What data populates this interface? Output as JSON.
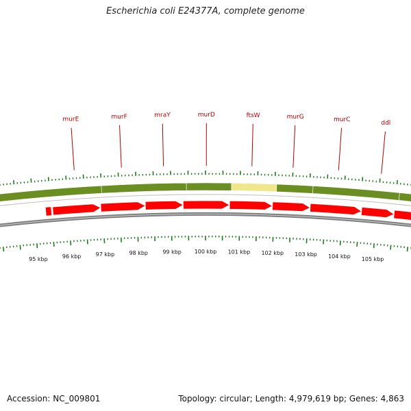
{
  "title": "Escherichia coli E24377A, complete genome",
  "footer": {
    "accession": "Accession: NC_009801",
    "summary": "Topology: circular; Length: 4,979,619 bp; Genes: 4,863"
  },
  "map": {
    "kbp_unit": "kbp",
    "scale_labels": [
      {
        "kb": 95,
        "label": "95 kbp"
      },
      {
        "kb": 96,
        "label": "96 kbp"
      },
      {
        "kb": 97,
        "label": "97 kbp"
      },
      {
        "kb": 98,
        "label": "98 kbp"
      },
      {
        "kb": 99,
        "label": "99 kbp"
      },
      {
        "kb": 100,
        "label": "100 kbp"
      },
      {
        "kb": 101,
        "label": "101 kbp"
      },
      {
        "kb": 102,
        "label": "102 kbp"
      },
      {
        "kb": 103,
        "label": "103 kbp"
      },
      {
        "kb": 104,
        "label": "104 kbp"
      },
      {
        "kb": 105,
        "label": "105 kbp"
      }
    ],
    "genes": [
      {
        "name": "murE",
        "start": 95.55,
        "end": 96.95
      },
      {
        "name": "murF",
        "start": 96.95,
        "end": 98.25
      },
      {
        "name": "mraY",
        "start": 98.25,
        "end": 99.35
      },
      {
        "name": "murD",
        "start": 99.35,
        "end": 100.7
      },
      {
        "name": "ftsW",
        "start": 100.7,
        "end": 101.95
      },
      {
        "name": "murG",
        "start": 101.95,
        "end": 103.05
      },
      {
        "name": "murC",
        "start": 103.05,
        "end": 104.55
      },
      {
        "name": "ddl",
        "start": 104.55,
        "end": 105.5
      }
    ],
    "segments": [
      {
        "start": 93.4,
        "end": 97.0,
        "color": "#6b8e23"
      },
      {
        "start": 97.0,
        "end": 99.45,
        "color": "#6b8e23"
      },
      {
        "start": 99.45,
        "end": 100.75,
        "color": "#6b8e23"
      },
      {
        "start": 100.75,
        "end": 102.05,
        "color": "#f0e68c"
      },
      {
        "start": 102.05,
        "end": 103.1,
        "color": "#6b8e23"
      },
      {
        "start": 103.1,
        "end": 105.6,
        "color": "#6b8e23"
      },
      {
        "start": 105.6,
        "end": 106.4,
        "color": "#6b8e23"
      }
    ],
    "colors": {
      "gene_arrow": "#ff0000",
      "gene_label": "#b00000",
      "ticks": "#1f7a1f",
      "backbone": "#7f7f7f",
      "highlight": "#f0e68c",
      "feature": "#6b8e23"
    }
  }
}
